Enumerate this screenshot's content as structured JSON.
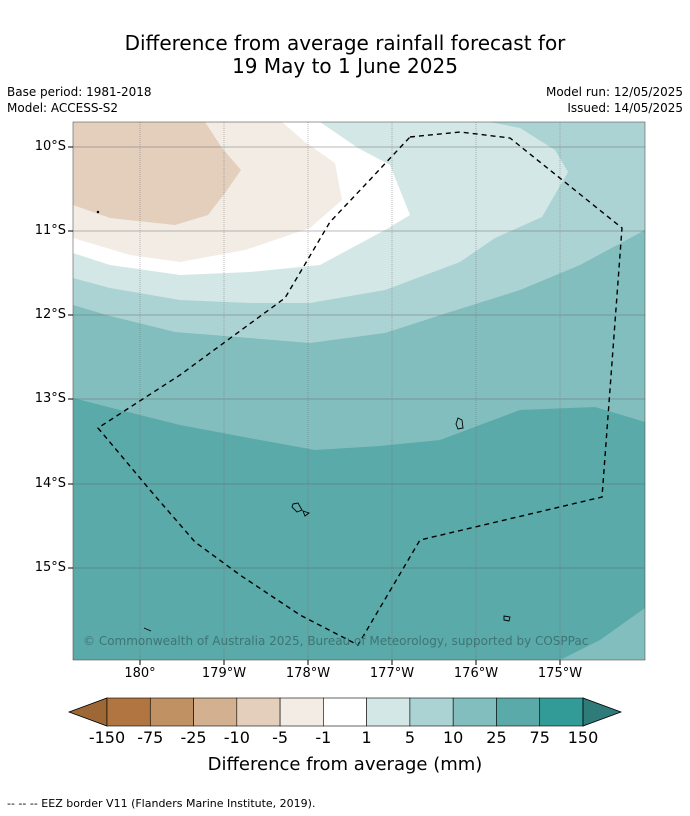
{
  "title_line1": "Difference from average rainfall forecast for",
  "title_line2": "19 May to 1 June 2025",
  "meta": {
    "base_period": "Base period: 1981-2018",
    "model": "Model: ACCESS-S2",
    "model_run": "Model run: 12/05/2025",
    "issued": "Issued: 14/05/2025"
  },
  "lat_labels": [
    "10°S",
    "11°S",
    "12°S",
    "13°S",
    "14°S",
    "15°S"
  ],
  "lon_labels": [
    "180°",
    "179°W",
    "178°W",
    "177°W",
    "176°W",
    "175°W"
  ],
  "copyright": "© Commonwealth of Australia 2025, Bureau of Meteorology, supported by COSPPac",
  "colorbar": {
    "levels": [
      "-150",
      "-75",
      "-25",
      "-10",
      "-5",
      "-1",
      "1",
      "5",
      "10",
      "25",
      "75",
      "150"
    ],
    "colors": [
      "#9d6836",
      "#b07540",
      "#c09263",
      "#d3b08f",
      "#e4cfbd",
      "#f2ece5",
      "#ffffff",
      "#d3e7e7",
      "#acd3d3",
      "#83bebe",
      "#5aaaaa",
      "#329a97",
      "#2e7b79"
    ],
    "title": "Difference from average (mm)"
  },
  "footnote": "--  --  -- EEZ border V11 (Flanders Marine Institute, 2019)."
}
